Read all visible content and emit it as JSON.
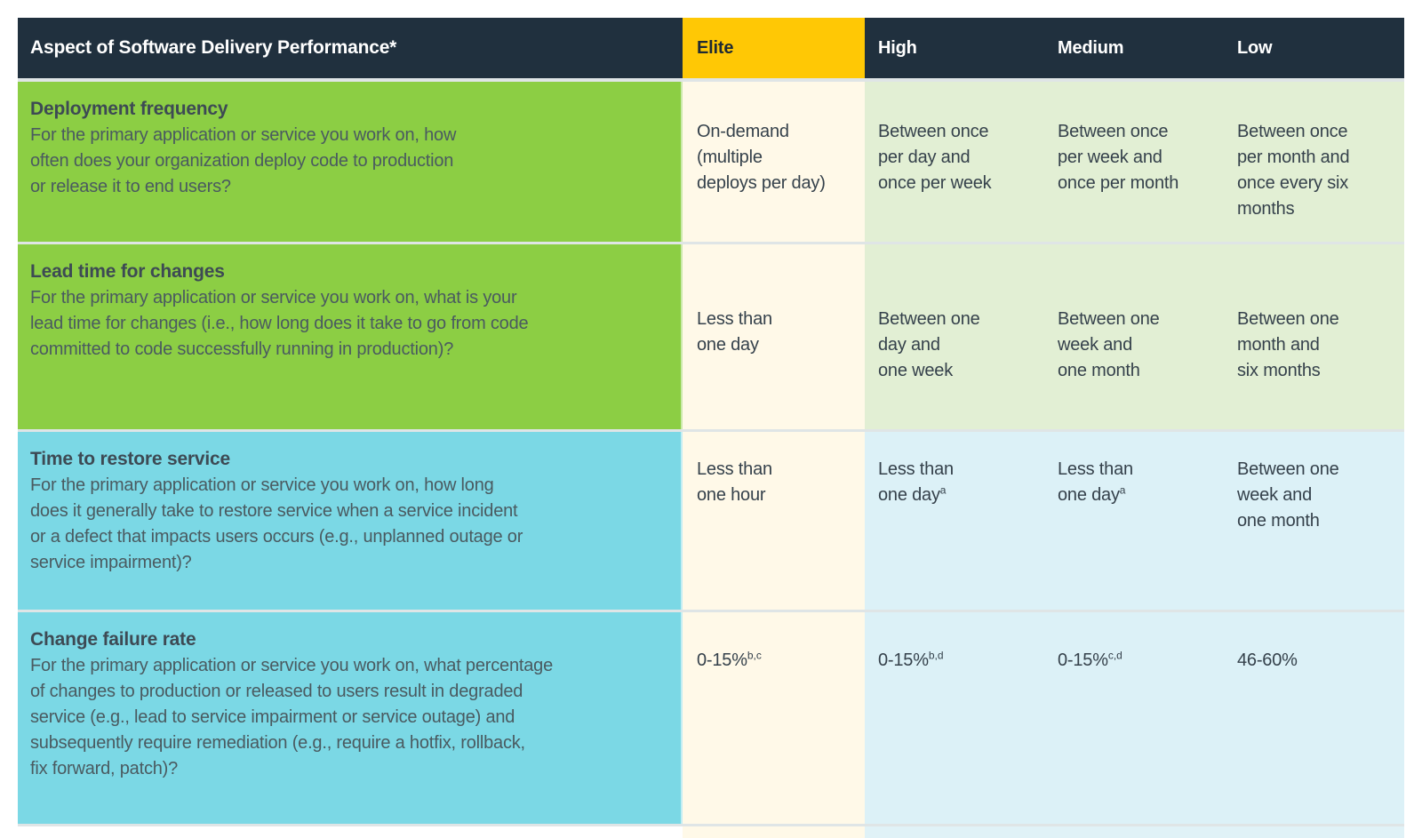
{
  "colors": {
    "header_bg": "#20303E",
    "elite_header_bg": "#FFC805",
    "green_row_bg": "#8CCE44",
    "cyan_row_bg": "#7BD8E5",
    "elite_cell_bg": "#FFF9E8",
    "light_green_cell_bg": "#E2EFD4",
    "light_cyan_cell_bg": "#DCF1F7",
    "row_divider": "#DFE5E6",
    "header_text": "#FFFFFF",
    "elite_header_text": "#1E2A33",
    "row_title_text": "#3D4A54",
    "row_description_text": "#4A5A60",
    "value_text": "#35414B"
  },
  "header": {
    "aspect_label": "Aspect of Software Delivery Performance*",
    "columns": [
      "Elite",
      "High",
      "Medium",
      "Low"
    ]
  },
  "rows": [
    {
      "theme": "green",
      "title": "Deployment frequency",
      "description": "For the primary application or service you work on, how\noften does your organization deploy code to production\nor release it to end users?",
      "values": [
        {
          "text": "On-demand\n(multiple\ndeploys per day)",
          "sup": ""
        },
        {
          "text": "Between once\nper day and\nonce per week",
          "sup": ""
        },
        {
          "text": "Between once\nper week and\nonce per month",
          "sup": ""
        },
        {
          "text": "Between once\nper month and\nonce every six\nmonths",
          "sup": ""
        }
      ]
    },
    {
      "theme": "green",
      "title": "Lead time for changes",
      "description": "For the primary application or service you work on, what is your\nlead time for changes (i.e., how long does it take to go from code\ncommitted to code successfully running in production)?",
      "values": [
        {
          "text": "Less than\none day",
          "sup": ""
        },
        {
          "text": "Between one\nday and\none week",
          "sup": ""
        },
        {
          "text": "Between one\nweek and\none month",
          "sup": ""
        },
        {
          "text": "Between one\nmonth and\nsix months",
          "sup": ""
        }
      ]
    },
    {
      "theme": "cyan",
      "title": "Time to restore service",
      "description": "For the primary application or service you work on, how long\ndoes it generally take to restore service when a service incident\nor a defect that impacts users occurs (e.g., unplanned outage or\nservice impairment)?",
      "values": [
        {
          "text": "Less than\none hour",
          "sup": ""
        },
        {
          "text": "Less than\none day",
          "sup": "a"
        },
        {
          "text": "Less than\none day",
          "sup": "a"
        },
        {
          "text": "Between one\nweek and\none month",
          "sup": ""
        }
      ]
    },
    {
      "theme": "cyan",
      "title": "Change failure rate",
      "description": "For the primary application or service you work on, what percentage\nof changes to production or released to users result in degraded\nservice (e.g., lead to service impairment or service outage) and\nsubsequently require remediation (e.g., require a hotfix, rollback,\nfix forward, patch)?",
      "values": [
        {
          "text": "0-15%",
          "sup": "b,c"
        },
        {
          "text": "0-15%",
          "sup": "b,d"
        },
        {
          "text": "0-15%",
          "sup": "c,d"
        },
        {
          "text": "46-60%",
          "sup": ""
        }
      ]
    }
  ]
}
